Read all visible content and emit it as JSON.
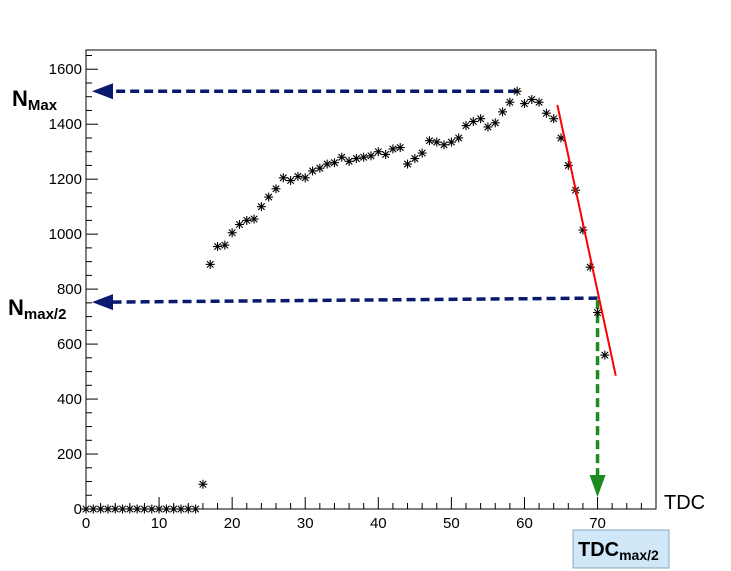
{
  "chart_data": {
    "type": "scatter",
    "xlabel": "TDC",
    "ylabel": "",
    "xlim": [
      0,
      78
    ],
    "ylim": [
      0,
      1670
    ],
    "x_ticks": [
      0,
      10,
      20,
      30,
      40,
      50,
      60,
      70
    ],
    "y_ticks": [
      0,
      200,
      400,
      600,
      800,
      1000,
      1200,
      1400,
      1600
    ],
    "grid": false,
    "marker": "asterisk",
    "series": [
      {
        "points": [
          [
            0,
            0
          ],
          [
            1,
            0
          ],
          [
            2,
            0
          ],
          [
            3,
            0
          ],
          [
            4,
            0
          ],
          [
            5,
            0
          ],
          [
            6,
            0
          ],
          [
            7,
            0
          ],
          [
            8,
            0
          ],
          [
            9,
            0
          ],
          [
            10,
            0
          ],
          [
            11,
            0
          ],
          [
            12,
            0
          ],
          [
            13,
            0
          ],
          [
            14,
            0
          ],
          [
            15,
            0
          ],
          [
            16,
            90
          ],
          [
            17,
            890
          ],
          [
            18,
            955
          ],
          [
            19,
            960
          ],
          [
            20,
            1005
          ],
          [
            21,
            1035
          ],
          [
            22,
            1050
          ],
          [
            23,
            1055
          ],
          [
            24,
            1100
          ],
          [
            25,
            1135
          ],
          [
            26,
            1165
          ],
          [
            27,
            1205
          ],
          [
            28,
            1195
          ],
          [
            29,
            1210
          ],
          [
            30,
            1205
          ],
          [
            31,
            1230
          ],
          [
            32,
            1240
          ],
          [
            33,
            1255
          ],
          [
            34,
            1260
          ],
          [
            35,
            1280
          ],
          [
            36,
            1265
          ],
          [
            37,
            1275
          ],
          [
            38,
            1280
          ],
          [
            39,
            1285
          ],
          [
            40,
            1300
          ],
          [
            41,
            1290
          ],
          [
            42,
            1310
          ],
          [
            43,
            1315
          ],
          [
            44,
            1255
          ],
          [
            45,
            1275
          ],
          [
            46,
            1295
          ],
          [
            47,
            1340
          ],
          [
            48,
            1335
          ],
          [
            49,
            1325
          ],
          [
            50,
            1335
          ],
          [
            51,
            1350
          ],
          [
            52,
            1395
          ],
          [
            53,
            1410
          ],
          [
            54,
            1420
          ],
          [
            55,
            1390
          ],
          [
            56,
            1405
          ],
          [
            57,
            1445
          ],
          [
            58,
            1480
          ],
          [
            59,
            1520
          ],
          [
            60,
            1475
          ],
          [
            61,
            1490
          ],
          [
            62,
            1480
          ],
          [
            63,
            1440
          ],
          [
            64,
            1420
          ],
          [
            65,
            1350
          ],
          [
            66,
            1250
          ],
          [
            67,
            1160
          ],
          [
            68,
            1015
          ],
          [
            69,
            880
          ],
          [
            70,
            715
          ],
          [
            71,
            560
          ]
        ]
      }
    ],
    "fit_line": {
      "x": [
        64.5,
        72.5
      ],
      "y": [
        1470,
        485
      ],
      "color": "#ff0000"
    },
    "annotations": {
      "n_max": {
        "label_main": "N",
        "label_sub": "Max",
        "value": 1520,
        "x_from": 59,
        "color": "#0a1a6e"
      },
      "n_half": {
        "label_main": "N",
        "label_sub": "max/2",
        "value": 760,
        "x_from": 70,
        "color": "#0a1a6e"
      },
      "tdc_half": {
        "label_main": "TDC",
        "label_sub": "max/2",
        "value": 70,
        "color": "#1e8a1e"
      }
    }
  }
}
